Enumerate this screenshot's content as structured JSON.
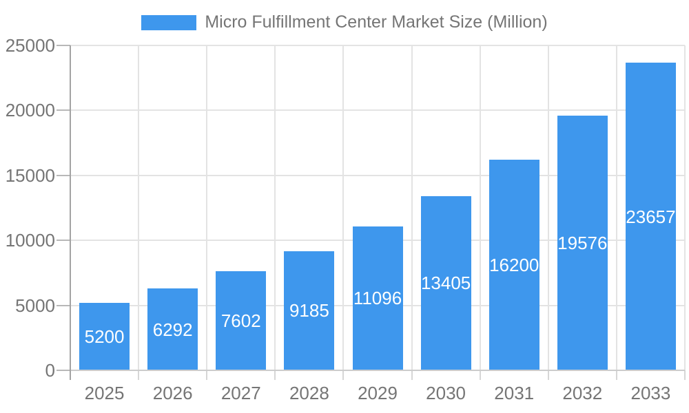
{
  "chart_data": {
    "type": "bar",
    "title": "Micro Fulfillment Center Market Size (Million)",
    "legend": {
      "position": "top",
      "entries": [
        "Micro Fulfillment Center Market Size (Million)"
      ]
    },
    "categories": [
      "2025",
      "2026",
      "2027",
      "2028",
      "2029",
      "2030",
      "2031",
      "2032",
      "2033"
    ],
    "values": [
      5200,
      6292,
      7602,
      9185,
      11096,
      13405,
      16200,
      19576,
      23657
    ],
    "xlabel": "",
    "ylabel": "",
    "ylim": [
      0,
      25000
    ],
    "yticks": [
      0,
      5000,
      10000,
      15000,
      20000,
      25000
    ],
    "grid": true,
    "value_labels_position": "inside-center",
    "colors": {
      "bar": "#3e97ed",
      "axis_text": "#757575",
      "value_text": "#ffffff",
      "gridline": "#e3e3e3",
      "baseline": "#cccccc",
      "axis_line": "#a3a3a3",
      "background": "#ffffff"
    }
  }
}
